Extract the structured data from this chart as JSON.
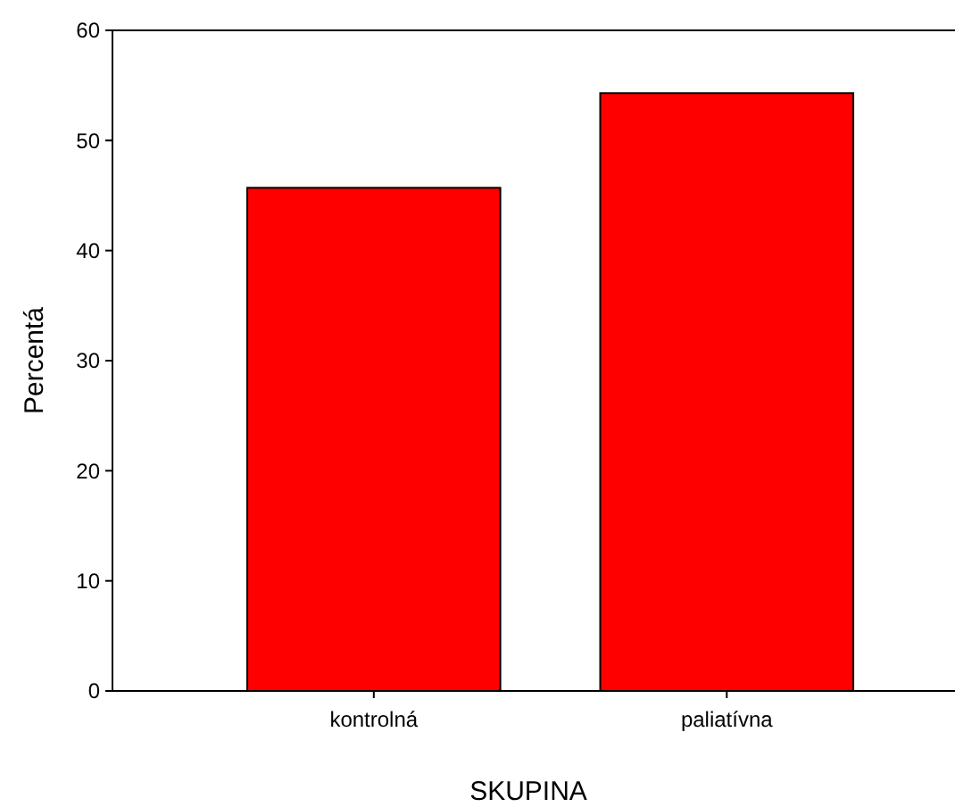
{
  "chart_data": {
    "type": "bar",
    "xlabel": "SKUPINA",
    "ylabel": "Percentá",
    "categories": [
      "kontrolná",
      "paliatívna"
    ],
    "values": [
      45.7,
      54.3
    ],
    "color": "#ff0000",
    "ylim": [
      0,
      60
    ],
    "yticks": [
      0,
      10,
      20,
      30,
      40,
      50,
      60
    ],
    "grid": false
  }
}
